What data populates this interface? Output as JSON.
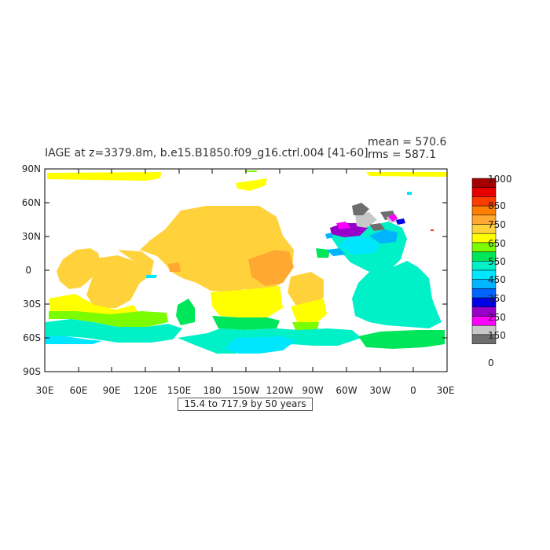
{
  "title": "IAGE at z=3379.8m, b.e15.B1850.f09_g16.ctrl.004 [41-60]",
  "stats": {
    "mean": "mean = 570.6",
    "rms": "rms = 587.1"
  },
  "contour_info": "15.4 to 717.9 by 50 years",
  "lat_labels": [
    "90N",
    "60N",
    "30N",
    "0",
    "30S",
    "60S",
    "90S"
  ],
  "lon_labels": [
    "30E",
    "60E",
    "90E",
    "120E",
    "150E",
    "180",
    "150W",
    "120W",
    "90W",
    "60W",
    "30W",
    "0",
    "30E"
  ],
  "colorbar": {
    "labels": [
      "1000",
      "850",
      "750",
      "650",
      "550",
      "450",
      "350",
      "250",
      "150",
      "0"
    ],
    "colors": [
      "#a50000",
      "#e60000",
      "#ff3c00",
      "#ff7f00",
      "#ffa832",
      "#ffd23c",
      "#ffff00",
      "#7cfc00",
      "#00e65a",
      "#00f0c8",
      "#00e6ff",
      "#00b4ff",
      "#0064ff",
      "#0000e6",
      "#9600c8",
      "#ff00ff",
      "#c8c8c8",
      "#6e6e6e"
    ]
  }
}
